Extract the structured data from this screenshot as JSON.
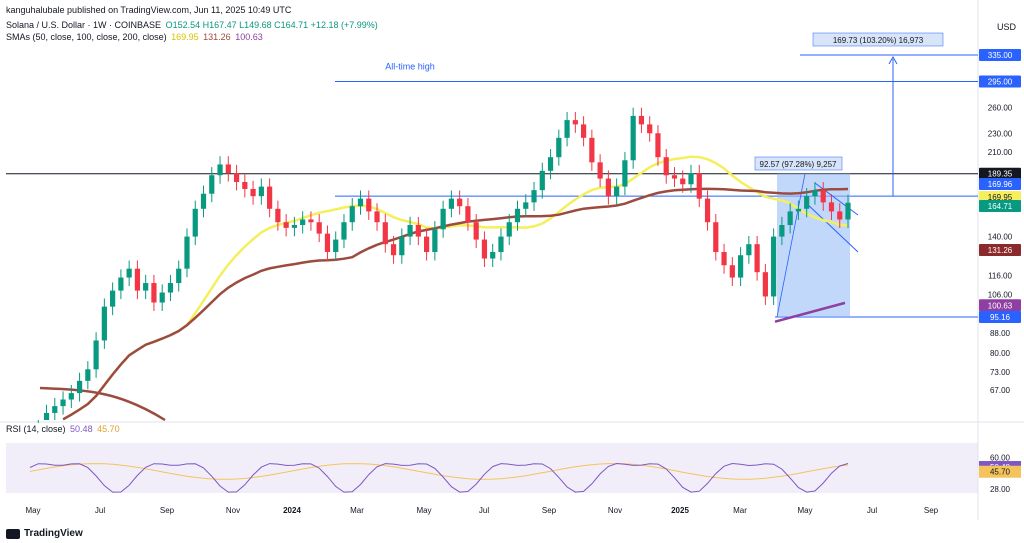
{
  "header": {
    "publisher": "kanguhalubale published on TradingView.com, Jun 11, 2025 10:49 UTC",
    "symbol": "Solana / U.S. Dollar · 1W · COINBASE",
    "ohlc": "O152.54 H167.47 L149.68 C164.71 +12.18 (+7.99%)",
    "sma_label": "SMAs (50, close, 100, close, 200, close)",
    "sma_values": [
      "169.95",
      "131.26",
      "100.63"
    ],
    "rsi_label": "RSI (14, close)",
    "rsi_values": [
      "50.48",
      "45.70"
    ],
    "currency": "USD",
    "footer": "TradingView"
  },
  "colors": {
    "up": "#089981",
    "down": "#f23645",
    "sma50": "#f5ef5c",
    "sma100": "#9c4b3f",
    "sma200": "#8e3fa1",
    "blue": "#2962ff",
    "rsi": "#7e57c2",
    "rsi_ma": "#f5c35c"
  },
  "chart_data": {
    "type": "candlestick",
    "title": "Solana / U.S. Dollar · 1W · COINBASE",
    "y_scale": "log",
    "ylim": [
      58,
      360
    ],
    "y_ticks": [
      "335.00",
      "295.00",
      "260.00",
      "230.00",
      "210.00",
      "189.35",
      "169.96",
      "169.95",
      "164.71",
      "140.00",
      "131.26",
      "116.00",
      "106.00",
      "100.63",
      "95.16",
      "88.00",
      "80.00",
      "73.00",
      "67.00"
    ],
    "x_labels": [
      "May",
      "Jul",
      "Sep",
      "Nov",
      "2024",
      "Mar",
      "May",
      "Jul",
      "Sep",
      "Nov",
      "2025",
      "Mar",
      "May",
      "Jul",
      "Sep"
    ],
    "candles_close": [
      50,
      55,
      60,
      62,
      64,
      66,
      70,
      74,
      85,
      100,
      108,
      115,
      120,
      108,
      112,
      102,
      107,
      112,
      120,
      140,
      160,
      172,
      188,
      198,
      190,
      182,
      176,
      170,
      178,
      160,
      150,
      146,
      148,
      152,
      150,
      142,
      130,
      138,
      150,
      162,
      168,
      158,
      150,
      135,
      128,
      140,
      148,
      140,
      130,
      145,
      160,
      168,
      162,
      150,
      138,
      126,
      130,
      140,
      150,
      160,
      165,
      175,
      192,
      205,
      225,
      245,
      240,
      225,
      200,
      185,
      170,
      178,
      202,
      250,
      240,
      230,
      205,
      188,
      185,
      180,
      190,
      168,
      150,
      130,
      122,
      115,
      128,
      135,
      118,
      105,
      140,
      148,
      158,
      160,
      170,
      175,
      165,
      158,
      152,
      164.71
    ],
    "sma_series": [
      {
        "name": "SMA 50",
        "value": 169.95
      },
      {
        "name": "SMA 100",
        "value": 131.26
      },
      {
        "name": "SMA 200",
        "value": 100.63
      }
    ],
    "levels": {
      "all_time_high": 295.0,
      "target": 335.0,
      "resistance": 189.35,
      "support": 95.16
    },
    "annotations": [
      {
        "text": "All-time high"
      },
      {
        "text": "169.73 (103.20%) 16,973"
      },
      {
        "text": "92.57 (97.28%) 9,257"
      },
      {
        "text": "4d 14h"
      }
    ],
    "rsi": {
      "ylim": [
        20,
        80
      ],
      "ticks": [
        "60.00",
        "50.48",
        "45.70",
        "28.00"
      ],
      "value": 50.48,
      "ma": 45.7
    }
  }
}
